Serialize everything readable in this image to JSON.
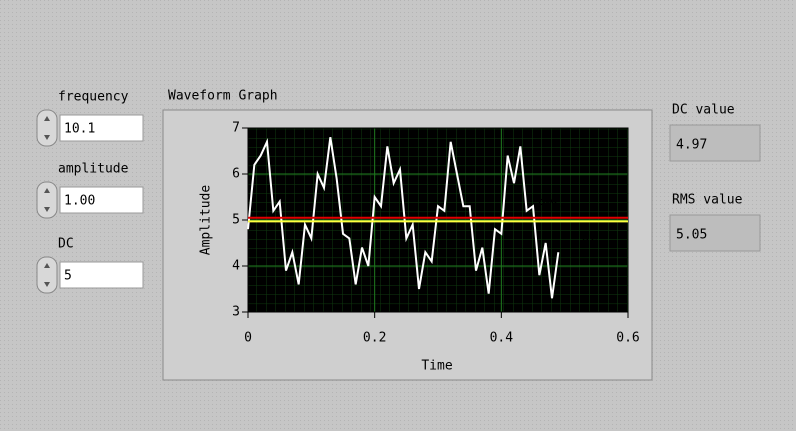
{
  "controls": [
    {
      "label": "frequency",
      "value": "10.1"
    },
    {
      "label": "amplitude",
      "value": "1.00"
    },
    {
      "label": "DC",
      "value": "5"
    }
  ],
  "indicators": [
    {
      "label": "DC value",
      "value": "4.97"
    },
    {
      "label": "RMS value",
      "value": "5.05"
    }
  ],
  "chart_data": {
    "type": "line",
    "title": "Waveform Graph",
    "x_label": "Time",
    "y_label": "Amplitude",
    "x": [
      0,
      0.01,
      0.02,
      0.03,
      0.04,
      0.05,
      0.06,
      0.07,
      0.08,
      0.09,
      0.1,
      0.11,
      0.12,
      0.13,
      0.14,
      0.15,
      0.16,
      0.17,
      0.18,
      0.19,
      0.2,
      0.21,
      0.22,
      0.23,
      0.24,
      0.25,
      0.26,
      0.27,
      0.28,
      0.29,
      0.3,
      0.31,
      0.32,
      0.33,
      0.34,
      0.35,
      0.36,
      0.37,
      0.38,
      0.39,
      0.4,
      0.41,
      0.42,
      0.43,
      0.44,
      0.45,
      0.46,
      0.47,
      0.48,
      0.49
    ],
    "series": [
      {
        "color": "#ffffff",
        "values": [
          4.8,
          6.2,
          6.4,
          6.7,
          5.2,
          5.4,
          3.9,
          4.3,
          3.6,
          4.9,
          4.6,
          6.0,
          5.7,
          6.8,
          5.9,
          4.7,
          4.6,
          3.6,
          4.4,
          4.0,
          5.5,
          5.3,
          6.6,
          5.8,
          6.1,
          4.6,
          4.9,
          3.5,
          4.3,
          4.1,
          5.3,
          5.2,
          6.7,
          6.0,
          5.3,
          5.3,
          3.9,
          4.4,
          3.4,
          4.8,
          4.7,
          6.4,
          5.8,
          6.6,
          5.2,
          5.3,
          3.8,
          4.5,
          3.3,
          4.3
        ]
      }
    ],
    "hlines": [
      {
        "label": "RMS",
        "value": 5.05,
        "color": "#e00000"
      },
      {
        "label": "DC",
        "value": 4.97,
        "color": "#ffff40"
      }
    ],
    "xlim": [
      0,
      0.6
    ],
    "xticks": [
      0,
      0.2,
      0.4,
      0.6
    ],
    "ylim": [
      3,
      7
    ],
    "yticks": [
      3,
      4,
      5,
      6,
      7
    ],
    "grid": true
  }
}
